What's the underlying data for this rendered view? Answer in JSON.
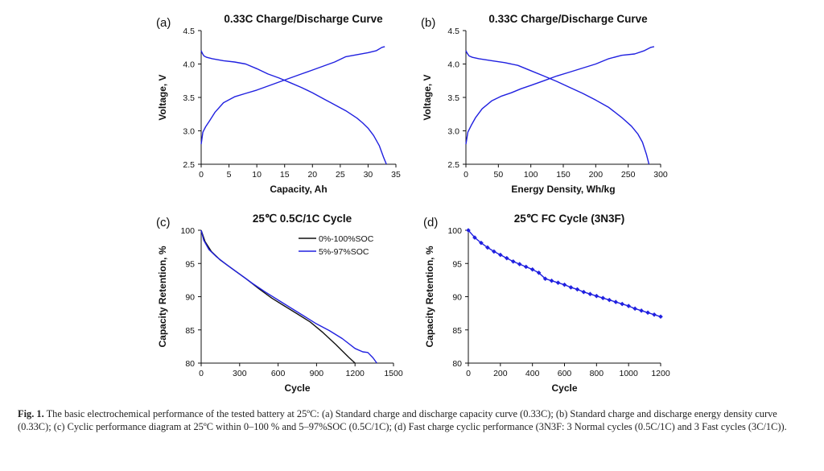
{
  "caption": {
    "label": "Fig. 1.",
    "text": "The basic electrochemical performance of the tested battery at 25ºC: (a) Standard charge and discharge capacity curve (0.33C); (b) Standard charge and discharge energy density curve (0.33C); (c) Cyclic performance diagram at 25ºC within 0–100 % and 5–97%SOC (0.5C/1C); (d) Fast charge cyclic performance (3N3F: 3 Normal cycles (0.5C/1C) and 3 Fast cycles (3C/1C))."
  },
  "colors": {
    "blue": "#2020e0",
    "black": "#111111"
  },
  "chart_data": [
    {
      "panel": "(a)",
      "type": "line",
      "title": "0.33C Charge/Discharge Curve",
      "xlabel": "Capacity, Ah",
      "ylabel": "Voltage, V",
      "xlim": [
        0,
        35
      ],
      "ylim": [
        2.5,
        4.5
      ],
      "xticks": [
        0,
        5,
        10,
        15,
        20,
        25,
        30,
        35
      ],
      "yticks": [
        2.5,
        3.0,
        3.5,
        4.0,
        4.5
      ],
      "ytick_labels": [
        "2.5",
        "3.0",
        "3.5",
        "4.0",
        "4.5"
      ],
      "legend": "none",
      "grid": false,
      "series": [
        {
          "color": "#2020e0",
          "x": [
            0,
            0.3,
            0.8,
            1.5,
            2.5,
            4,
            6,
            8,
            10,
            12,
            14,
            16,
            18,
            20,
            22,
            24,
            26,
            28,
            30,
            31.5,
            32.5,
            33
          ],
          "y": [
            2.8,
            2.98,
            3.06,
            3.15,
            3.28,
            3.42,
            3.51,
            3.56,
            3.61,
            3.67,
            3.73,
            3.79,
            3.85,
            3.91,
            3.97,
            4.03,
            4.11,
            4.14,
            4.17,
            4.2,
            4.25,
            4.26
          ]
        },
        {
          "color": "#2020e0",
          "x": [
            0,
            0.2,
            0.5,
            1,
            2,
            4,
            6,
            8,
            10,
            12,
            14,
            16,
            18,
            20,
            22,
            24,
            26,
            28,
            29,
            30,
            31,
            32,
            32.8,
            33.3
          ],
          "y": [
            4.2,
            4.16,
            4.12,
            4.1,
            4.08,
            4.05,
            4.03,
            4.0,
            3.93,
            3.85,
            3.79,
            3.72,
            3.65,
            3.57,
            3.48,
            3.39,
            3.3,
            3.19,
            3.12,
            3.04,
            2.93,
            2.78,
            2.6,
            2.5
          ]
        }
      ]
    },
    {
      "panel": "(b)",
      "type": "line",
      "title": "0.33C Charge/Discharge Curve",
      "xlabel": "Energy Density, Wh/kg",
      "ylabel": "Voltage, V",
      "xlim": [
        0,
        300
      ],
      "ylim": [
        2.5,
        4.5
      ],
      "xticks": [
        0,
        50,
        100,
        150,
        200,
        250,
        300
      ],
      "yticks": [
        2.5,
        3.0,
        3.5,
        4.0,
        4.5
      ],
      "ytick_labels": [
        "2.5",
        "3.0",
        "3.5",
        "4.0",
        "4.5"
      ],
      "legend": "none",
      "grid": false,
      "series": [
        {
          "color": "#2020e0",
          "x": [
            0,
            3,
            8,
            15,
            25,
            40,
            55,
            70,
            85,
            100,
            120,
            140,
            160,
            180,
            200,
            220,
            240,
            260,
            275,
            285,
            290
          ],
          "y": [
            2.8,
            2.98,
            3.08,
            3.2,
            3.33,
            3.45,
            3.52,
            3.57,
            3.63,
            3.68,
            3.75,
            3.82,
            3.88,
            3.94,
            4.0,
            4.08,
            4.13,
            4.15,
            4.2,
            4.25,
            4.26
          ]
        },
        {
          "color": "#2020e0",
          "x": [
            0,
            2,
            5,
            10,
            20,
            40,
            60,
            80,
            100,
            120,
            140,
            160,
            180,
            200,
            220,
            240,
            255,
            265,
            272,
            278,
            282
          ],
          "y": [
            4.2,
            4.16,
            4.12,
            4.1,
            4.08,
            4.05,
            4.02,
            3.98,
            3.9,
            3.82,
            3.74,
            3.65,
            3.56,
            3.46,
            3.35,
            3.2,
            3.07,
            2.95,
            2.83,
            2.65,
            2.5
          ]
        }
      ]
    },
    {
      "panel": "(c)",
      "type": "line",
      "title": "25℃ 0.5C/1C Cycle",
      "xlabel": "Cycle",
      "ylabel": "Capacity Retention, %",
      "xlim": [
        0,
        1500
      ],
      "ylim": [
        80,
        100
      ],
      "xticks": [
        0,
        300,
        600,
        900,
        1200,
        1500
      ],
      "yticks": [
        80,
        85,
        90,
        95,
        100
      ],
      "ytick_labels": [
        "80",
        "85",
        "90",
        "95",
        "100"
      ],
      "legend": "top-right",
      "grid": false,
      "series": [
        {
          "name": "0%-100%SOC",
          "color": "#111111",
          "x": [
            0,
            30,
            80,
            150,
            250,
            350,
            450,
            550,
            650,
            750,
            850,
            950,
            1050,
            1150,
            1200
          ],
          "y": [
            100,
            98.3,
            96.8,
            95.5,
            94.1,
            92.7,
            91.2,
            89.8,
            88.6,
            87.4,
            86.2,
            84.6,
            82.8,
            80.9,
            80
          ]
        },
        {
          "name": "5%-97%SOC",
          "color": "#2020e0",
          "x": [
            0,
            20,
            60,
            120,
            200,
            300,
            400,
            500,
            600,
            700,
            800,
            900,
            1000,
            1100,
            1200,
            1260,
            1300,
            1340,
            1370
          ],
          "y": [
            100,
            98.5,
            97.1,
            96.0,
            94.8,
            93.4,
            92.0,
            90.7,
            89.5,
            88.3,
            87.1,
            85.9,
            84.9,
            83.7,
            82.2,
            81.7,
            81.6,
            80.8,
            80
          ]
        }
      ]
    },
    {
      "panel": "(d)",
      "type": "line",
      "title": "25℃ FC Cycle (3N3F)",
      "xlabel": "Cycle",
      "ylabel": "Capacity Retention, %",
      "xlim": [
        0,
        1200
      ],
      "ylim": [
        80,
        100
      ],
      "xticks": [
        0,
        200,
        400,
        600,
        800,
        1000,
        1200
      ],
      "yticks": [
        80,
        85,
        90,
        95,
        100
      ],
      "ytick_labels": [
        "80",
        "85",
        "90",
        "95",
        "100"
      ],
      "legend": "none",
      "grid": false,
      "markers": true,
      "series": [
        {
          "color": "#2020e0",
          "x": [
            0,
            40,
            80,
            120,
            160,
            200,
            240,
            280,
            320,
            360,
            400,
            440,
            480,
            520,
            560,
            600,
            640,
            680,
            720,
            760,
            800,
            840,
            880,
            920,
            960,
            1000,
            1040,
            1080,
            1120,
            1160,
            1200
          ],
          "y": [
            100,
            98.9,
            98.1,
            97.4,
            96.8,
            96.3,
            95.8,
            95.3,
            94.9,
            94.5,
            94.1,
            93.6,
            92.7,
            92.4,
            92.1,
            91.8,
            91.4,
            91.1,
            90.7,
            90.4,
            90.1,
            89.8,
            89.5,
            89.2,
            88.9,
            88.6,
            88.2,
            87.9,
            87.6,
            87.3,
            87.0
          ]
        }
      ]
    }
  ]
}
